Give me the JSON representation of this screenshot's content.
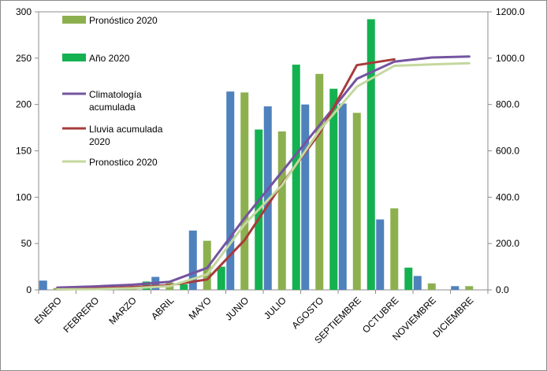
{
  "chart_data": {
    "type": "bar",
    "categories": [
      "ENERO",
      "FEBRERO",
      "MARZO",
      "ABRIL",
      "MAYO",
      "JUNIO",
      "JULIO",
      "AGOSTO",
      "SEPTIEMBRE",
      "OCTUBRE",
      "NOVIEMBRE",
      "DICIEMBRE"
    ],
    "bar_series": [
      {
        "values": [
          10,
          1,
          1,
          14,
          64,
          214,
          198,
          200,
          201,
          76,
          15,
          4
        ],
        "color": "#4f81bd"
      },
      {
        "name": "Pronóstico 2020",
        "values": [
          2,
          1,
          2,
          8,
          53,
          213,
          171,
          233,
          191,
          88,
          7,
          4
        ],
        "color": "#8db04f"
      },
      {
        "name": "Año 2020",
        "values": [
          1,
          1,
          9,
          6,
          25,
          173,
          243,
          217,
          292,
          24,
          null,
          null
        ],
        "color": "#14b150"
      }
    ],
    "line_series": [
      {
        "name": "Climatología acumulada",
        "values": [
          10,
          15,
          22,
          35,
          95,
          310,
          510,
          710,
          911,
          985,
          1003,
          1007
        ],
        "color": "#7454a0"
      },
      {
        "name": "Lluvia acumulada 2020",
        "values": [
          2,
          6,
          12,
          20,
          45,
          215,
          458,
          675,
          970,
          995,
          null,
          null
        ],
        "color": "#a73b3b"
      },
      {
        "name": "Pronostico 2020",
        "values": [
          2,
          3,
          7,
          16,
          67,
          283,
          452,
          688,
          877,
          967,
          973,
          978
        ],
        "color": "#c4d89f"
      }
    ],
    "left_axis": {
      "min": 0,
      "max": 300,
      "ticks": [
        "0",
        "50",
        "100",
        "150",
        "200",
        "250",
        "300"
      ]
    },
    "right_axis": {
      "min": 0,
      "max": 1200,
      "ticks": [
        "0.0",
        "200.0",
        "400.0",
        "600.0",
        "800.0",
        "1000.0",
        "1200.0"
      ]
    },
    "legend": {
      "position": "top-left inside plot",
      "items": [
        {
          "kind": "bar",
          "color": "#8db04f",
          "lines": [
            "Pronóstico 2020"
          ]
        },
        {
          "kind": "bar",
          "color": "#14b150",
          "lines": [
            "Año 2020"
          ]
        },
        {
          "kind": "line",
          "color": "#7454a0",
          "lines": [
            "Climatología",
            "acumulada"
          ]
        },
        {
          "kind": "line",
          "color": "#a73b3b",
          "lines": [
            "Lluvia acumulada",
            "2020"
          ]
        },
        {
          "kind": "line",
          "color": "#c4d89f",
          "lines": [
            "Pronostico 2020"
          ]
        }
      ]
    },
    "grid": false
  }
}
